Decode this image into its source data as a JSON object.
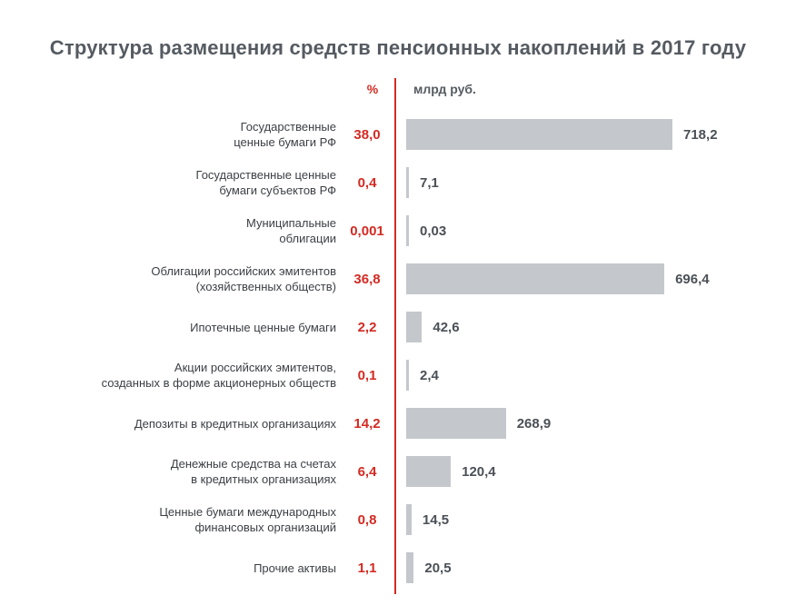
{
  "title": "Структура размещения средств пенсионных накоплений в 2017 году",
  "headers": {
    "percent": "%",
    "unit": "млрд руб."
  },
  "chart_data": {
    "type": "bar",
    "orientation": "horizontal",
    "title": "Структура размещения средств пенсионных накоплений в 2017 году",
    "xlabel": "млрд руб.",
    "xlim": [
      0,
      718.2
    ],
    "categories": [
      [
        "Государственные",
        "ценные бумаги РФ"
      ],
      [
        "Государственные ценные",
        "бумаги субъектов РФ"
      ],
      [
        "Муниципальные",
        "облигации"
      ],
      [
        "Облигации российских эмитентов",
        "(хозяйственных обществ)"
      ],
      [
        "Ипотечные ценные бумаги"
      ],
      [
        "Акции российских эмитентов,",
        "созданных в форме акционерных обществ"
      ],
      [
        "Депозиты в кредитных организациях"
      ],
      [
        "Денежные средства на счетах",
        "в кредитных организациях"
      ],
      [
        "Ценные бумаги международных",
        "финансовых организаций"
      ],
      [
        "Прочие активы"
      ]
    ],
    "percent_labels": [
      "38,0",
      "0,4",
      "0,001",
      "36,8",
      "2,2",
      "0,1",
      "14,2",
      "6,4",
      "0,8",
      "1,1"
    ],
    "values": [
      718.2,
      7.1,
      0.03,
      696.4,
      42.6,
      2.4,
      268.9,
      120.4,
      14.5,
      20.5
    ],
    "value_labels": [
      "718,2",
      "7,1",
      "0,03",
      "696,4",
      "42,6",
      "2,4",
      "268,9",
      "120,4",
      "14,5",
      "20,5"
    ],
    "colors": {
      "bar": "#c4c8cc",
      "percent": "#d42a22",
      "divider": "#d42a22",
      "text": "#3b3f44"
    }
  }
}
